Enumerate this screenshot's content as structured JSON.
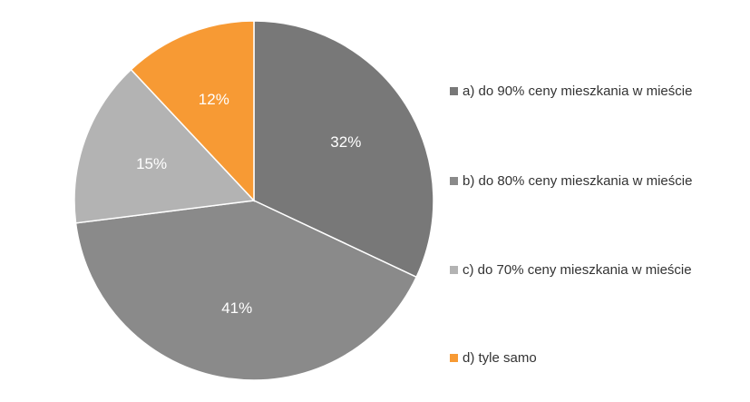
{
  "chart_data": {
    "type": "pie",
    "title": "",
    "slices": [
      {
        "label": "a) do 90% ceny mieszkania w mieście",
        "value": 32,
        "value_label": "32%",
        "color": "#787878"
      },
      {
        "label": "b) do 80% ceny mieszkania w mieście",
        "value": 41,
        "value_label": "41%",
        "color": "#8a8a8a"
      },
      {
        "label": "c) do 70% ceny mieszkania w mieście",
        "value": 15,
        "value_label": "15%",
        "color": "#b3b3b3"
      },
      {
        "label": "d) tyle samo",
        "value": 12,
        "value_label": "12%",
        "color": "#f79a34"
      }
    ],
    "start_angle": "12 o'clock",
    "direction": "clockwise",
    "legend_position": "right"
  }
}
